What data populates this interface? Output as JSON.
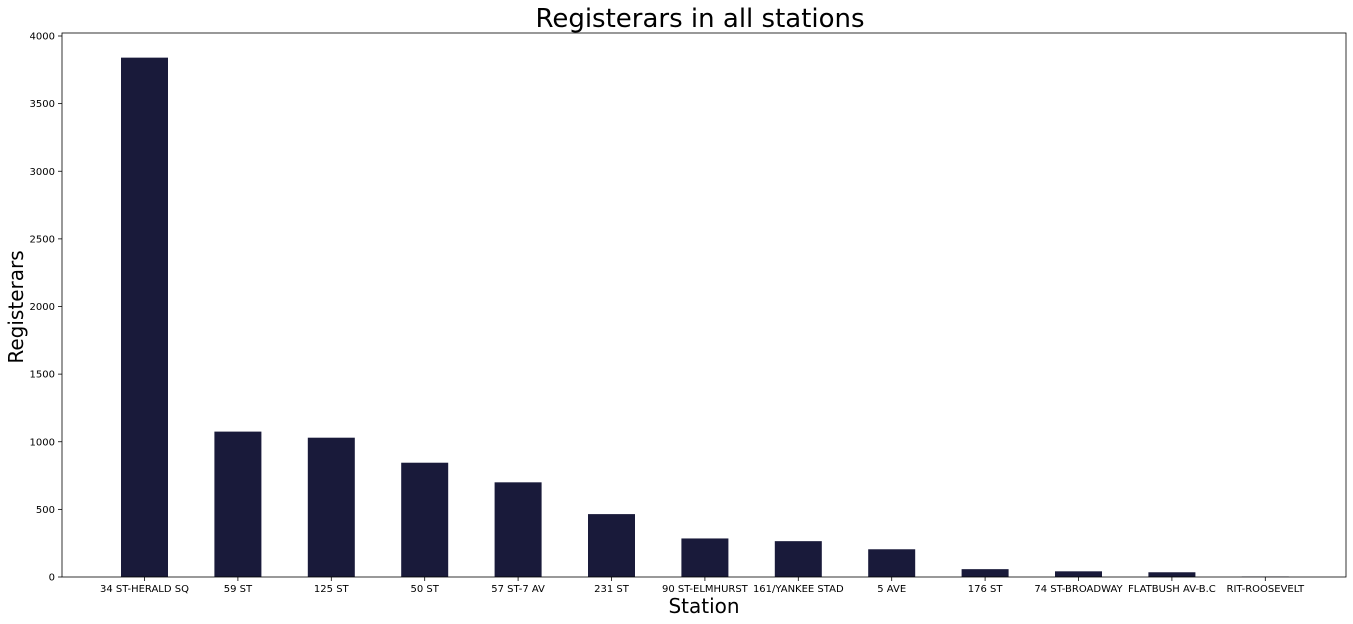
{
  "chart_data": {
    "type": "bar",
    "title": "Registerars in all stations",
    "xlabel": "Station",
    "ylabel": "Registerars",
    "categories": [
      "34 ST-HERALD SQ",
      "59 ST",
      "125 ST",
      "50 ST",
      "57 ST-7 AV",
      "231 ST",
      "90 ST-ELMHURST",
      "161/YANKEE STAD",
      "5 AVE",
      "176 ST",
      "74 ST-BROADWAY",
      "FLATBUSH AV-B.C",
      "RIT-ROOSEVELT"
    ],
    "values": [
      3840,
      1075,
      1030,
      845,
      700,
      465,
      285,
      265,
      205,
      58,
      42,
      35,
      3
    ],
    "ylim": [
      0,
      4000
    ],
    "yticks": [
      0,
      500,
      1000,
      1500,
      2000,
      2500,
      3000,
      3500,
      4000
    ],
    "bar_color": "#191a3a",
    "grid": false,
    "legend": "none"
  }
}
